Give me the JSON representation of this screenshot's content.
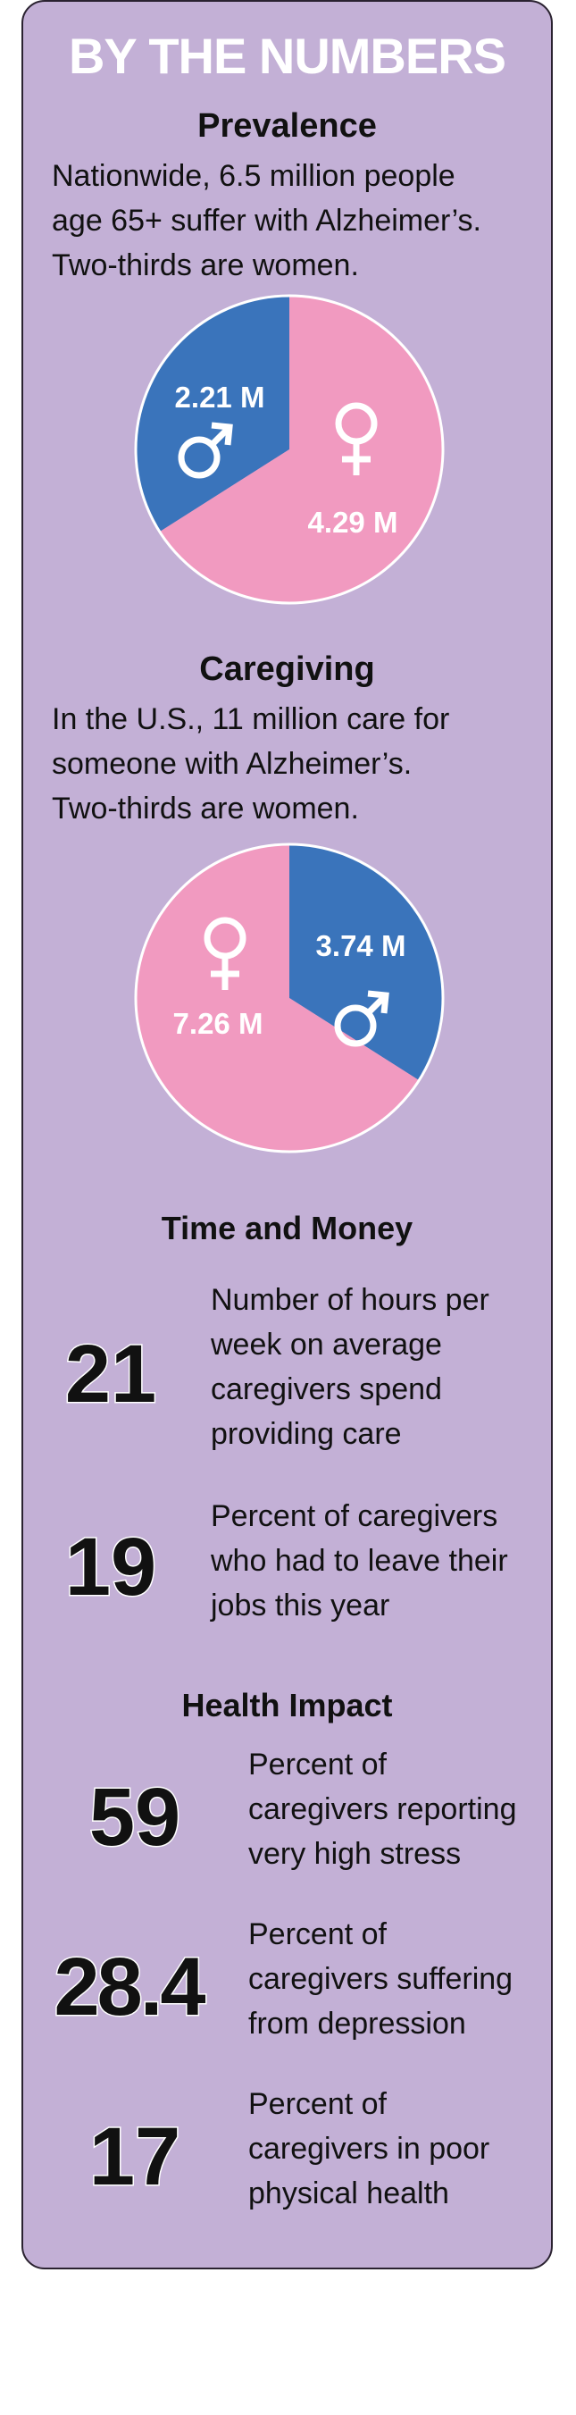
{
  "title": "BY THE NUMBERS",
  "prevalence": {
    "heading": "Prevalence",
    "text_lines": [
      "Nationwide, 6.5 million people",
      "age 65+ suffer with Alzheimer’s.",
      "Two-thirds are women."
    ]
  },
  "caregiving": {
    "heading": "Caregiving",
    "text_lines": [
      "In the U.S., 11 million care for",
      "someone with Alzheimer’s.",
      "Two-thirds are women."
    ]
  },
  "time_money": {
    "heading": "Time and Money",
    "stats": [
      {
        "number": "21",
        "text_lines": [
          "Number of hours per",
          "week on average",
          "caregivers spend",
          "providing care"
        ]
      },
      {
        "number": "19",
        "text_lines": [
          "Percent of caregivers",
          "who had to leave their",
          "jobs this year"
        ]
      }
    ]
  },
  "health": {
    "heading": "Health Impact",
    "stats": [
      {
        "number": "59",
        "text_lines": [
          "Percent of",
          "caregivers reporting",
          "very high stress"
        ]
      },
      {
        "number": "28.4",
        "text_lines": [
          "Percent of",
          "caregivers suffering",
          "from depression"
        ]
      },
      {
        "number": "17",
        "text_lines": [
          "Percent of",
          "caregivers in poor",
          "physical health"
        ]
      }
    ]
  },
  "colors": {
    "panel": "#c3b0d6",
    "male": "#3a74bb",
    "female": "#f19ac0"
  },
  "chart_data": [
    {
      "type": "pie",
      "categories": [
        "men",
        "women"
      ],
      "values": [
        2.21,
        4.29
      ],
      "labels": [
        "2.21 M",
        "4.29 M"
      ],
      "icons": [
        "male-symbol-icon",
        "female-symbol-icon"
      ]
    },
    {
      "type": "pie",
      "categories": [
        "men",
        "women"
      ],
      "values": [
        3.74,
        7.26
      ],
      "labels": [
        "3.74 M",
        "7.26 M"
      ],
      "icons": [
        "male-symbol-icon",
        "female-symbol-icon"
      ]
    }
  ]
}
